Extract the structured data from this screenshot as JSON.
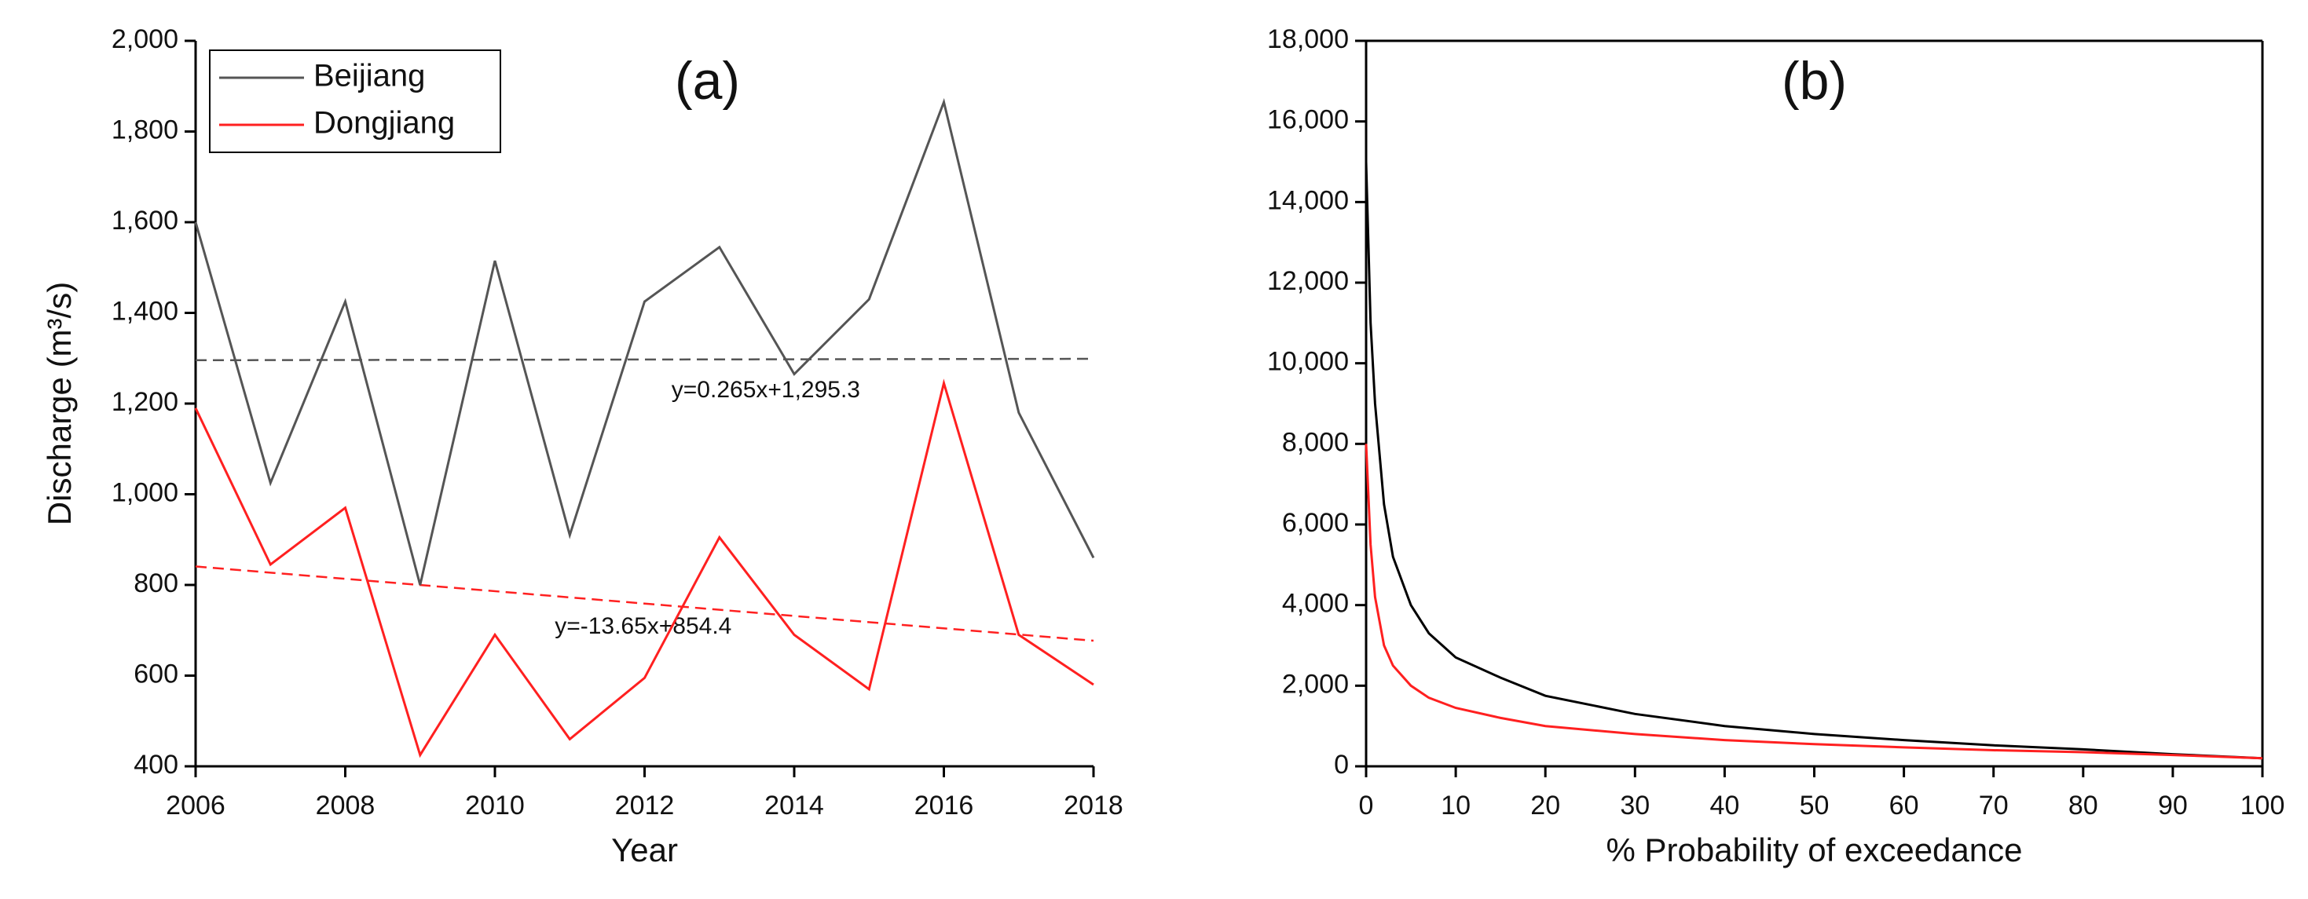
{
  "chart_data": [
    {
      "type": "line",
      "title": "(a)",
      "x_label": "Year",
      "y_label": "Discharge (m³/s)",
      "x": [
        2006,
        2007,
        2008,
        2009,
        2010,
        2011,
        2012,
        2013,
        2014,
        2015,
        2016,
        2017,
        2018
      ],
      "series": [
        {
          "name": "Beijiang",
          "color": "#555555",
          "values": [
            1600,
            1025,
            1425,
            800,
            1515,
            910,
            1425,
            1545,
            1265,
            1430,
            1865,
            1180,
            860
          ]
        },
        {
          "name": "Dongjiang",
          "color": "#ff2020",
          "values": [
            1190,
            845,
            970,
            425,
            690,
            460,
            595,
            905,
            690,
            570,
            1245,
            690,
            580
          ]
        }
      ],
      "trendlines": [
        {
          "label": "y=0.265x+1,295.3",
          "color": "#555555",
          "x": [
            2006,
            2018
          ],
          "values": [
            1295.6,
            1298.7
          ]
        },
        {
          "label": "y=-13.65x+854.4",
          "color": "#ff2020",
          "x": [
            2006,
            2018
          ],
          "values": [
            840.8,
            677.0
          ]
        }
      ],
      "xlim": [
        2006,
        2018
      ],
      "xticks": [
        2006,
        2008,
        2010,
        2012,
        2014,
        2016,
        2018
      ],
      "ylim": [
        400,
        2000
      ],
      "yticks": [
        400,
        600,
        800,
        {
          "value": 1000,
          "label": "1,000"
        },
        {
          "value": 1200,
          "label": "1,200"
        },
        {
          "value": 1400,
          "label": "1,400"
        },
        {
          "value": 1600,
          "label": "1,600"
        },
        {
          "value": 1800,
          "label": "1,800"
        },
        {
          "value": 2000,
          "label": "2,000"
        }
      ],
      "legend": "top-left",
      "frame": false
    },
    {
      "type": "line",
      "title": "(b)",
      "x_label": "% Probability of exceedance",
      "x": [
        0,
        0.5,
        1,
        2,
        3,
        5,
        7,
        10,
        15,
        20,
        30,
        40,
        50,
        60,
        70,
        80,
        90,
        100
      ],
      "series": [
        {
          "color": "#000000",
          "values": [
            15000,
            11000,
            9000,
            6500,
            5200,
            4000,
            3300,
            2700,
            2200,
            1750,
            1300,
            1000,
            800,
            650,
            520,
            420,
            300,
            200
          ]
        },
        {
          "color": "#ff2020",
          "values": [
            8000,
            5500,
            4200,
            3000,
            2500,
            2000,
            1700,
            1450,
            1200,
            1000,
            800,
            650,
            550,
            470,
            400,
            350,
            280,
            200
          ]
        }
      ],
      "xlim": [
        0,
        100
      ],
      "xticks": [
        0,
        10,
        20,
        30,
        40,
        50,
        60,
        70,
        80,
        90,
        100
      ],
      "ylim": [
        0,
        18000
      ],
      "yticks": [
        0,
        {
          "value": 2000,
          "label": "2,000"
        },
        {
          "value": 4000,
          "label": "4,000"
        },
        {
          "value": 6000,
          "label": "6,000"
        },
        {
          "value": 8000,
          "label": "8,000"
        },
        {
          "value": 10000,
          "label": "10,000"
        },
        {
          "value": 12000,
          "label": "12,000"
        },
        {
          "value": 14000,
          "label": "14,000"
        },
        {
          "value": 16000,
          "label": "16,000"
        },
        {
          "value": 18000,
          "label": "18,000"
        }
      ],
      "frame": true
    }
  ]
}
